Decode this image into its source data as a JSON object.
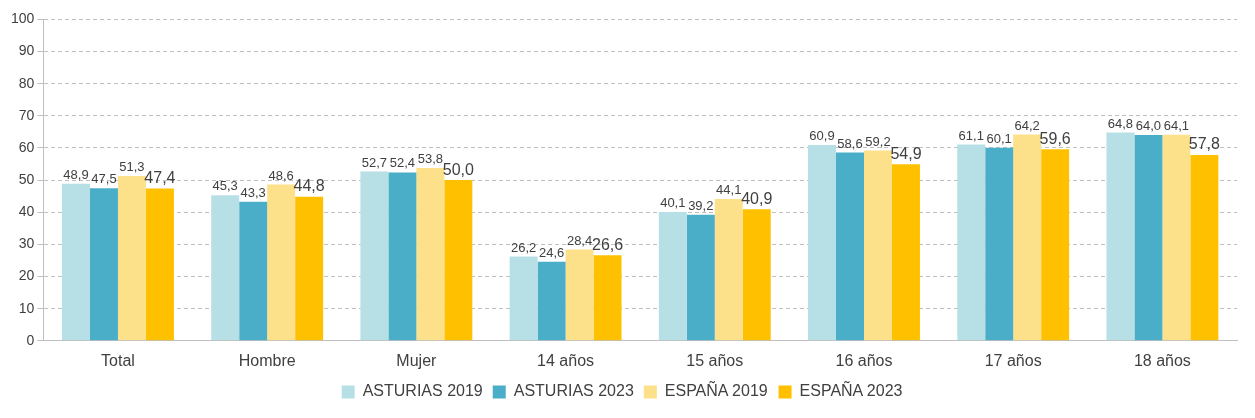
{
  "chart_data": {
    "type": "bar",
    "categories": [
      "Total",
      "Hombre",
      "Mujer",
      "14 años",
      "15 años",
      "16 años",
      "17 años",
      "18 años"
    ],
    "series": [
      {
        "name": "ASTURIAS 2019",
        "color": "#b7dfe6",
        "values": [
          48.9,
          45.3,
          52.7,
          26.2,
          40.1,
          60.9,
          61.1,
          64.8
        ],
        "value_labels": [
          "48,9",
          "45,3",
          "52,7",
          "26,2",
          "40,1",
          "60,9",
          "61,1",
          "64,8"
        ]
      },
      {
        "name": "ASTURIAS 2023",
        "color": "#4aaec8",
        "values": [
          47.5,
          43.3,
          52.4,
          24.6,
          39.2,
          58.6,
          60.1,
          64.0
        ],
        "value_labels": [
          "47,5",
          "43,3",
          "52,4",
          "24,6",
          "39,2",
          "58,6",
          "60,1",
          "64,0"
        ]
      },
      {
        "name": "ESPAÑA 2019",
        "color": "#fde08a",
        "values": [
          51.3,
          48.6,
          53.8,
          28.4,
          44.1,
          59.2,
          64.2,
          64.1
        ],
        "value_labels": [
          "51,3",
          "48,6",
          "53,8",
          "28,4",
          "44,1",
          "59,2",
          "64,2",
          "64,1"
        ]
      },
      {
        "name": "ESPAÑA 2023",
        "color": "#ffc000",
        "values": [
          47.4,
          44.8,
          50.0,
          26.6,
          40.9,
          54.9,
          59.6,
          57.8
        ],
        "value_labels": [
          "47,4",
          "44,8",
          "50,0",
          "26,6",
          "40,9",
          "54,9",
          "59,6",
          "57,8"
        ]
      }
    ],
    "ylim": [
      0,
      100
    ],
    "yticks": [
      0,
      10,
      20,
      30,
      40,
      50,
      60,
      70,
      80,
      90,
      100
    ],
    "grid": "y",
    "legend": "bottom"
  }
}
